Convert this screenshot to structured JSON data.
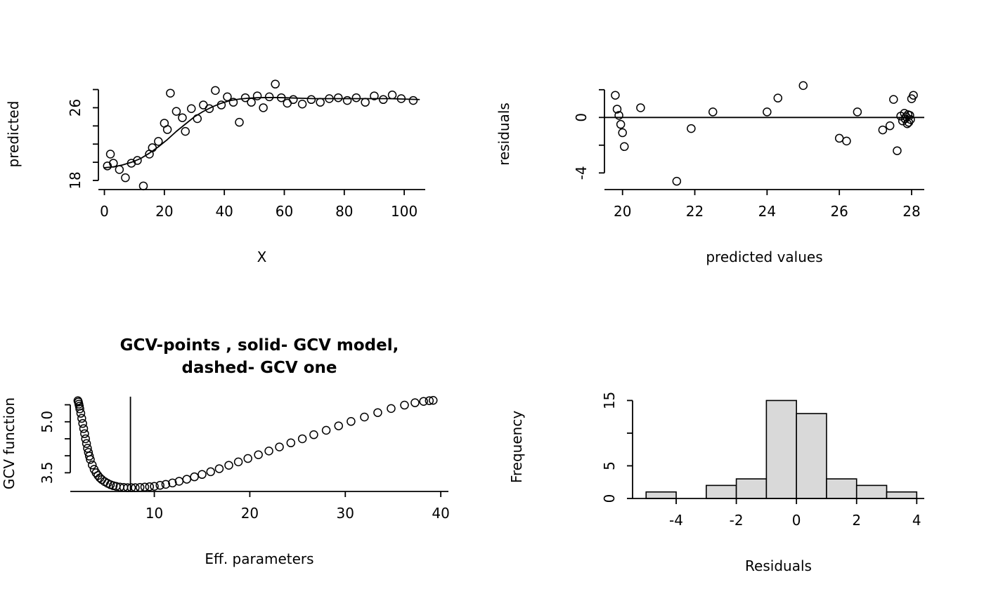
{
  "figure": {
    "background": "#ffffff",
    "foreground": "#000000"
  },
  "chart_data": [
    {
      "id": "fitted-vs-x",
      "type": "scatter",
      "title_lines": [],
      "xlabel": "X",
      "ylabel": "predicted",
      "xlim": [
        -2,
        107
      ],
      "ylim": [
        17,
        29.2
      ],
      "xticks": [
        {
          "v": 0,
          "l": "0"
        },
        {
          "v": 20,
          "l": "20"
        },
        {
          "v": 40,
          "l": "40"
        },
        {
          "v": 60,
          "l": "60"
        },
        {
          "v": 80,
          "l": "80"
        },
        {
          "v": 100,
          "l": "100"
        }
      ],
      "yticks": [
        {
          "v": 18,
          "l": "18"
        },
        {
          "v": 20,
          "l": ""
        },
        {
          "v": 22,
          "l": ""
        },
        {
          "v": 24,
          "l": ""
        },
        {
          "v": 26,
          "l": "26"
        },
        {
          "v": 28,
          "l": ""
        }
      ],
      "points": {
        "x": [
          1,
          2,
          3,
          5,
          7,
          9,
          11,
          13,
          15,
          16,
          18,
          20,
          21,
          22,
          24,
          26,
          27,
          29,
          31,
          33,
          35,
          37,
          39,
          41,
          43,
          45,
          47,
          49,
          51,
          53,
          55,
          57,
          59,
          61,
          63,
          66,
          69,
          72,
          75,
          78,
          81,
          84,
          87,
          90,
          93,
          96,
          99,
          103
        ],
        "y": [
          19.6,
          20.9,
          19.9,
          19.2,
          18.3,
          19.9,
          20.2,
          17.4,
          20.9,
          21.6,
          22.3,
          24.3,
          23.6,
          27.6,
          25.6,
          24.9,
          23.4,
          25.9,
          24.8,
          26.3,
          25.9,
          27.9,
          26.3,
          27.2,
          26.6,
          24.4,
          27.1,
          26.6,
          27.3,
          26.0,
          27.2,
          28.6,
          27.1,
          26.5,
          26.9,
          26.4,
          26.9,
          26.6,
          27.0,
          27.1,
          26.8,
          27.1,
          26.6,
          27.3,
          26.9,
          27.4,
          27.0,
          26.8
        ]
      },
      "curve": {
        "x": [
          0,
          3,
          6,
          9,
          12,
          15,
          18,
          21,
          24,
          27,
          30,
          33,
          36,
          39,
          42,
          45,
          48,
          51,
          54,
          57,
          60,
          65,
          70,
          75,
          80,
          85,
          90,
          95,
          100,
          105
        ],
        "y": [
          19.4,
          19.5,
          19.7,
          20.0,
          20.4,
          21.0,
          21.7,
          22.5,
          23.4,
          24.2,
          25.0,
          25.6,
          26.1,
          26.5,
          26.8,
          26.95,
          27.05,
          27.1,
          27.12,
          27.12,
          27.1,
          27.05,
          27.0,
          27.0,
          27.0,
          27.0,
          27.0,
          27.0,
          26.95,
          26.9
        ]
      },
      "hline": null,
      "vline": null
    },
    {
      "id": "residuals-vs-predicted",
      "type": "scatter",
      "title_lines": [],
      "xlabel": "predicted values",
      "ylabel": "residuals",
      "xlim": [
        19.5,
        28.35
      ],
      "ylim": [
        -5.2,
        2.8
      ],
      "xticks": [
        {
          "v": 20,
          "l": "20"
        },
        {
          "v": 22,
          "l": "22"
        },
        {
          "v": 24,
          "l": "24"
        },
        {
          "v": 26,
          "l": "26"
        },
        {
          "v": 28,
          "l": "28"
        }
      ],
      "yticks": [
        {
          "v": -4,
          "l": "-4"
        },
        {
          "v": -2,
          "l": ""
        },
        {
          "v": 0,
          "l": "0"
        },
        {
          "v": 2,
          "l": ""
        }
      ],
      "points": {
        "x": [
          19.8,
          19.85,
          19.9,
          19.95,
          20.0,
          20.05,
          20.5,
          21.5,
          21.9,
          22.5,
          24.0,
          24.3,
          25.0,
          26.0,
          26.2,
          26.5,
          27.2,
          27.4,
          27.5,
          27.6,
          27.7,
          27.75,
          27.8,
          27.82,
          27.85,
          27.88,
          27.9,
          27.92,
          27.95,
          27.97,
          28.0,
          28.05
        ],
        "y": [
          1.6,
          0.6,
          0.15,
          -0.5,
          -1.1,
          -2.1,
          0.7,
          -4.6,
          -0.8,
          0.4,
          0.4,
          1.4,
          2.3,
          -1.5,
          -1.7,
          0.4,
          -0.9,
          -0.6,
          1.3,
          -2.4,
          0.1,
          -0.25,
          0.3,
          -0.1,
          0.05,
          -0.45,
          0.2,
          -0.35,
          0.15,
          -0.15,
          1.35,
          1.6
        ]
      },
      "hline": 0,
      "vline": null
    },
    {
      "id": "gcv-function",
      "type": "scatter",
      "title_lines": [
        "GCV-points , solid- GCV model,",
        "dashed- GCV one"
      ],
      "xlabel": "Eff. parameters",
      "ylabel": "GCV function",
      "xlim": [
        1.2,
        40.8
      ],
      "ylim": [
        2.95,
        5.78
      ],
      "xticks": [
        {
          "v": 10,
          "l": "10"
        },
        {
          "v": 20,
          "l": "20"
        },
        {
          "v": 30,
          "l": "30"
        },
        {
          "v": 40,
          "l": "40"
        }
      ],
      "yticks": [
        {
          "v": 3.5,
          "l": "3.5"
        },
        {
          "v": 4.0,
          "l": ""
        },
        {
          "v": 4.5,
          "l": ""
        },
        {
          "v": 5.0,
          "l": "5.0"
        },
        {
          "v": 5.5,
          "l": ""
        }
      ],
      "points": {
        "x": [
          2.0,
          2.05,
          2.1,
          2.15,
          2.2,
          2.3,
          2.4,
          2.5,
          2.6,
          2.7,
          2.8,
          2.9,
          3.0,
          3.1,
          3.2,
          3.3,
          3.5,
          3.7,
          3.9,
          4.1,
          4.3,
          4.5,
          4.8,
          5.1,
          5.4,
          5.7,
          6.0,
          6.4,
          6.8,
          7.2,
          7.6,
          8.0,
          8.5,
          9.0,
          9.5,
          10.0,
          10.6,
          11.2,
          11.9,
          12.6,
          13.4,
          14.2,
          15.0,
          15.9,
          16.8,
          17.8,
          18.8,
          19.8,
          20.9,
          22.0,
          23.1,
          24.3,
          25.5,
          26.7,
          28.0,
          29.3,
          30.6,
          32.0,
          33.4,
          34.8,
          36.2,
          37.3,
          38.2,
          38.8,
          39.2
        ],
        "y": [
          5.62,
          5.58,
          5.52,
          5.46,
          5.38,
          5.25,
          5.1,
          4.95,
          4.8,
          4.65,
          4.5,
          4.36,
          4.22,
          4.1,
          3.99,
          3.89,
          3.73,
          3.6,
          3.5,
          3.42,
          3.35,
          3.3,
          3.24,
          3.19,
          3.15,
          3.12,
          3.1,
          3.08,
          3.07,
          3.06,
          3.06,
          3.06,
          3.07,
          3.08,
          3.09,
          3.1,
          3.13,
          3.16,
          3.2,
          3.25,
          3.31,
          3.38,
          3.45,
          3.53,
          3.62,
          3.72,
          3.82,
          3.92,
          4.03,
          4.14,
          4.26,
          4.38,
          4.5,
          4.62,
          4.75,
          4.88,
          5.01,
          5.14,
          5.27,
          5.39,
          5.49,
          5.56,
          5.6,
          5.62,
          5.63
        ]
      },
      "hline": null,
      "vline": 7.5
    },
    {
      "id": "residuals-histogram",
      "type": "histogram",
      "title_lines": [],
      "xlabel": "Residuals",
      "ylabel": "Frequency",
      "xlim": [
        -5.45,
        4.25
      ],
      "ylim": [
        0,
        15.8
      ],
      "xticks": [
        {
          "v": -4,
          "l": "-4"
        },
        {
          "v": -2,
          "l": "-2"
        },
        {
          "v": 0,
          "l": "0"
        },
        {
          "v": 2,
          "l": "2"
        },
        {
          "v": 4,
          "l": "4"
        }
      ],
      "yticks": [
        {
          "v": 0,
          "l": "0"
        },
        {
          "v": 5,
          "l": "5"
        },
        {
          "v": 10,
          "l": ""
        },
        {
          "v": 15,
          "l": "15"
        }
      ],
      "breaks": [
        -5,
        -4,
        -3,
        -2,
        -1,
        0,
        1,
        2,
        3,
        4
      ],
      "counts": [
        1,
        0,
        2,
        3,
        15,
        13,
        3,
        2,
        1
      ],
      "bar_fill": "#d9d9d9",
      "hline": null,
      "vline": null
    }
  ]
}
